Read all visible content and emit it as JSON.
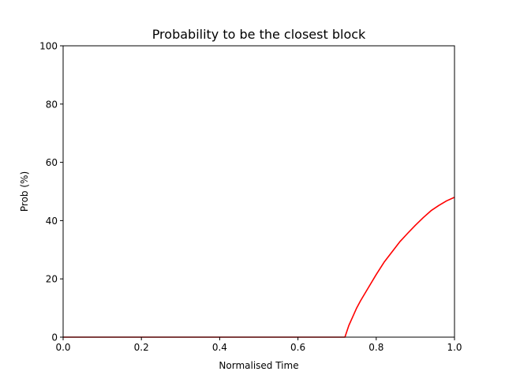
{
  "chart_data": {
    "type": "line",
    "title": "Probability to be the closest block",
    "xlabel": "Normalised Time",
    "ylabel": "Prob (%)",
    "xlim": [
      0,
      1
    ],
    "ylim": [
      0,
      100
    ],
    "xticks": [
      "0.0",
      "0.2",
      "0.4",
      "0.6",
      "0.8",
      "1.0"
    ],
    "yticks": [
      "0",
      "20",
      "40",
      "60",
      "80",
      "100"
    ],
    "grid": false,
    "series": [
      {
        "color": "#ff0000",
        "x": [
          0.0,
          0.1,
          0.2,
          0.3,
          0.4,
          0.5,
          0.6,
          0.7,
          0.72,
          0.725,
          0.73,
          0.74,
          0.75,
          0.76,
          0.78,
          0.8,
          0.82,
          0.84,
          0.86,
          0.88,
          0.9,
          0.92,
          0.94,
          0.96,
          0.98,
          1.0
        ],
        "y": [
          0,
          0,
          0,
          0,
          0,
          0,
          0,
          0,
          0,
          2.0,
          4.0,
          7.0,
          10.0,
          12.5,
          17.0,
          21.5,
          25.7,
          29.2,
          32.7,
          35.6,
          38.4,
          41.0,
          43.4,
          45.2,
          46.8,
          48.0
        ]
      }
    ]
  }
}
